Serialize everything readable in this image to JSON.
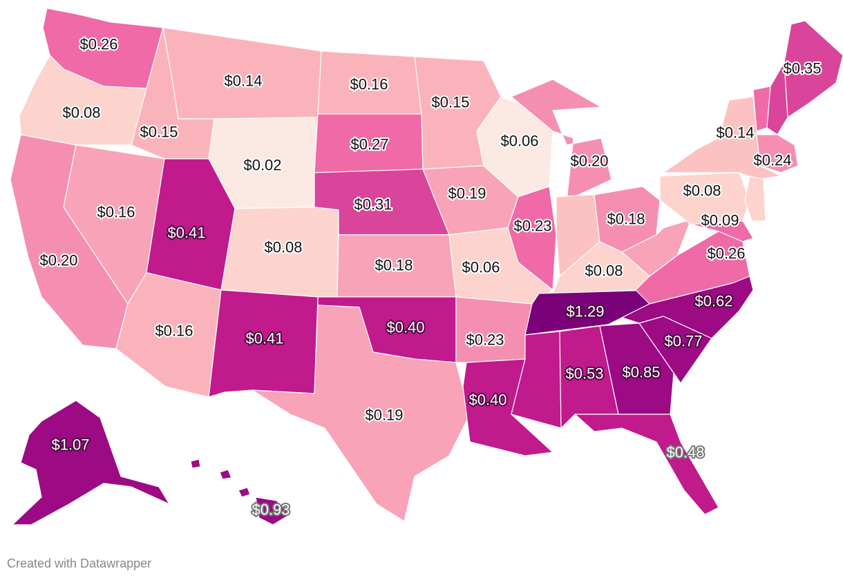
{
  "credit": "Created with Datawrapper",
  "colors": {
    "c1": "#fde9e3",
    "c2": "#fcd4cd",
    "c3": "#fcc2c1",
    "c4": "#fbb3bb",
    "c5": "#f8a3b7",
    "c6": "#f58fb2",
    "c7": "#ef6aa7",
    "c8": "#d9459a",
    "c9": "#c01a8c",
    "c10": "#9c0a84",
    "c11": "#7a0177"
  },
  "states": [
    {
      "id": "WA",
      "value": "$0.26"
    },
    {
      "id": "OR",
      "value": "$0.08"
    },
    {
      "id": "CA",
      "value": "$0.20"
    },
    {
      "id": "NV",
      "value": "$0.16"
    },
    {
      "id": "ID",
      "value": "$0.15"
    },
    {
      "id": "MT",
      "value": "$0.14"
    },
    {
      "id": "WY",
      "value": "$0.02"
    },
    {
      "id": "UT",
      "value": "$0.41"
    },
    {
      "id": "AZ",
      "value": "$0.16"
    },
    {
      "id": "CO",
      "value": "$0.08"
    },
    {
      "id": "NM",
      "value": "$0.41"
    },
    {
      "id": "ND",
      "value": "$0.16"
    },
    {
      "id": "SD",
      "value": "$0.27"
    },
    {
      "id": "NE",
      "value": "$0.31"
    },
    {
      "id": "KS",
      "value": "$0.18"
    },
    {
      "id": "OK",
      "value": "$0.40"
    },
    {
      "id": "TX",
      "value": "$0.19"
    },
    {
      "id": "MN",
      "value": "$0.15"
    },
    {
      "id": "IA",
      "value": "$0.19"
    },
    {
      "id": "MO",
      "value": "$0.06"
    },
    {
      "id": "AR",
      "value": "$0.23"
    },
    {
      "id": "LA",
      "value": "$0.40"
    },
    {
      "id": "WI",
      "value": "$0.06"
    },
    {
      "id": "IL",
      "value": "$0.23"
    },
    {
      "id": "MI",
      "value": "$0.20"
    },
    {
      "id": "IN",
      "value": ""
    },
    {
      "id": "OH",
      "value": "$0.18"
    },
    {
      "id": "KY",
      "value": "$0.08"
    },
    {
      "id": "TN",
      "value": "$1.29"
    },
    {
      "id": "MS",
      "value": ""
    },
    {
      "id": "AL",
      "value": "$0.53"
    },
    {
      "id": "GA",
      "value": "$0.85"
    },
    {
      "id": "FL",
      "value": "$0.48"
    },
    {
      "id": "SC",
      "value": "$0.77"
    },
    {
      "id": "NC",
      "value": "$0.62"
    },
    {
      "id": "VA",
      "value": "$0.26"
    },
    {
      "id": "WV",
      "value": ""
    },
    {
      "id": "PA",
      "value": "$0.08"
    },
    {
      "id": "NY",
      "value": "$0.14"
    },
    {
      "id": "VT",
      "value": ""
    },
    {
      "id": "NH",
      "value": ""
    },
    {
      "id": "ME",
      "value": "$0.35"
    },
    {
      "id": "MA",
      "value": "$0.24"
    },
    {
      "id": "NJ",
      "value": "$0.09"
    },
    {
      "id": "MD",
      "value": ""
    },
    {
      "id": "AK",
      "value": "$1.07"
    },
    {
      "id": "HI",
      "value": "$0.93"
    }
  ]
}
